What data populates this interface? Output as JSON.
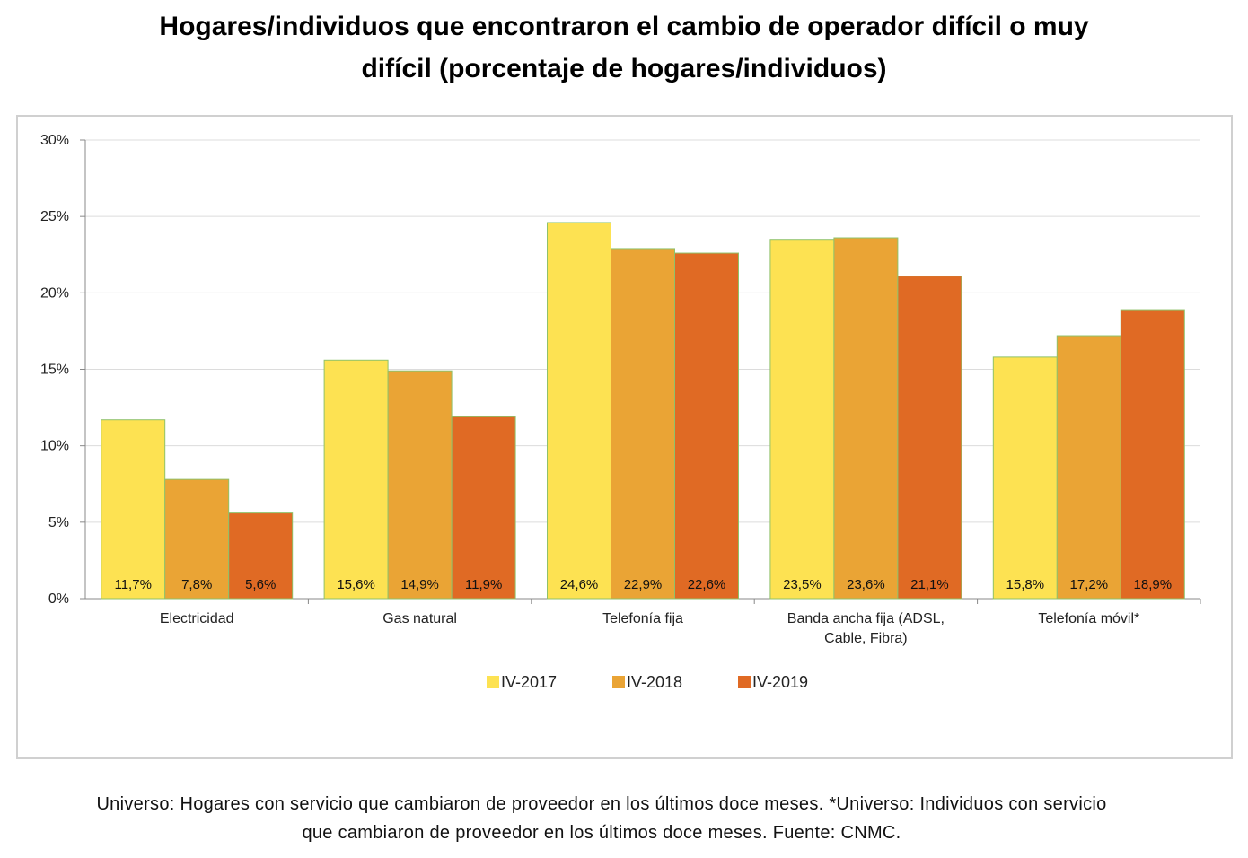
{
  "title": {
    "line1": "Hogares/individuos que encontraron el cambio de operador difícil o muy",
    "line2": "difícil (porcentaje de hogares/individuos)"
  },
  "footnote": {
    "line1": "Universo: Hogares con servicio que cambiaron de proveedor en los últimos doce meses. *Universo: Individuos con servicio",
    "line2": "que cambiaron de proveedor en los últimos doce meses. Fuente: CNMC."
  },
  "chart_data": {
    "type": "bar",
    "categories": [
      [
        "Electricidad"
      ],
      [
        "Gas natural"
      ],
      [
        "Telefonía fija"
      ],
      [
        "Banda ancha fija (ADSL,",
        "Cable, Fibra)"
      ],
      [
        "Telefonía móvil*"
      ]
    ],
    "series": [
      {
        "name": "IV-2017",
        "color": "#fde252",
        "values": [
          11.7,
          15.6,
          24.6,
          23.5,
          15.8
        ],
        "labels": [
          "11,7%",
          "15,6%",
          "24,6%",
          "23,5%",
          "15,8%"
        ]
      },
      {
        "name": "IV-2018",
        "color": "#eaa435",
        "values": [
          7.8,
          14.9,
          22.9,
          23.6,
          17.2
        ],
        "labels": [
          "7,8%",
          "14,9%",
          "22,9%",
          "23,6%",
          "17,2%"
        ]
      },
      {
        "name": "IV-2019",
        "color": "#e06a24",
        "values": [
          5.6,
          11.9,
          22.6,
          21.1,
          18.9
        ],
        "labels": [
          "5,6%",
          "11,9%",
          "22,6%",
          "21,1%",
          "18,9%"
        ]
      }
    ],
    "yticks": [
      0,
      5,
      10,
      15,
      20,
      25,
      30
    ],
    "ytick_labels": [
      "0%",
      "5%",
      "10%",
      "15%",
      "20%",
      "25%",
      "30%"
    ],
    "ylim": [
      0,
      30
    ],
    "grid": true,
    "legend_position": "bottom",
    "xlabel": "",
    "ylabel": ""
  }
}
